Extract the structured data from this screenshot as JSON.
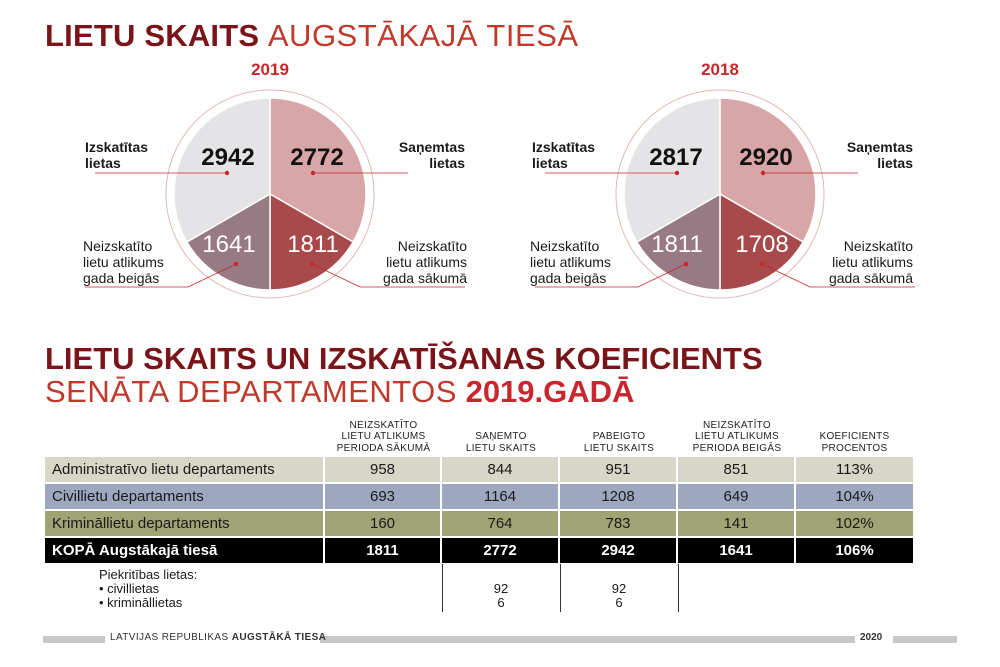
{
  "title1": {
    "bold": "LIETU SKAITS",
    "light": "AUGSTĀKAJĀ TIESĀ"
  },
  "pies": [
    {
      "year": "2019",
      "heard": "2942",
      "received": "2772",
      "pending_end": "1641",
      "pending_start": "1811",
      "label_heard": [
        "Izskatītas",
        "lietas"
      ],
      "label_received": [
        "Saņemtas",
        "lietas"
      ],
      "label_end": [
        "Neizskatīto",
        "lietu atlikums",
        "gada beigās"
      ],
      "label_start": [
        "Neizskatīto",
        "lietu atlikums",
        "gada sākumā"
      ]
    },
    {
      "year": "2018",
      "heard": "2817",
      "received": "2920",
      "pending_end": "1811",
      "pending_start": "1708",
      "label_heard": [
        "Izskatītas",
        "lietas"
      ],
      "label_received": [
        "Saņemtas",
        "lietas"
      ],
      "label_end": [
        "Neizskatīto",
        "lietu atlikums",
        "gada beigās"
      ],
      "label_start": [
        "Neizskatīto",
        "lietu atlikums",
        "gada sākumā"
      ]
    }
  ],
  "title2": "LIETU SKAITS UN IZSKATĪŠANAS KOEFICIENTS",
  "title3": {
    "light": "SENĀTA DEPARTAMENTOS",
    "bold": "2019.GADĀ"
  },
  "table": {
    "headers": [
      [
        "NEIZSKATĪTO",
        "LIETU ATLIKUMS",
        "PERIODA SĀKUMĀ"
      ],
      [
        "SAŅEMTO",
        "LIETU SKAITS"
      ],
      [
        "PABEIGTO",
        "LIETU SKAITS"
      ],
      [
        "NEIZSKATĪTO",
        "LIETU ATLIKUMS",
        "PERIODA BEIGĀS"
      ],
      [
        "KOEFICIENTS",
        "PROCENTOS"
      ]
    ],
    "rows": [
      {
        "name": "Administratīvo lietu departaments",
        "values": [
          "958",
          "844",
          "951",
          "851",
          "113%"
        ],
        "color": "#d8d6c7"
      },
      {
        "name": "Civillietu departaments",
        "values": [
          "693",
          "1164",
          "1208",
          "649",
          "104%"
        ],
        "color": "#9da7bf"
      },
      {
        "name": "Krimināllietu departaments",
        "values": [
          "160",
          "764",
          "783",
          "141",
          "102%"
        ],
        "color": "#a0a373"
      },
      {
        "name": "KOPĀ Augstākajā tiesā",
        "values": [
          "1811",
          "2772",
          "2942",
          "1641",
          "106%"
        ],
        "color": "#000000"
      }
    ],
    "extra": {
      "title": "Piekritības lietas:",
      "items": [
        "• civillietas",
        "• krimināllietas"
      ],
      "received": [
        "92",
        "6"
      ],
      "finished": [
        "92",
        "6"
      ]
    }
  },
  "footer": {
    "text": "LATVIJAS REPUBLIKAS",
    "bold": "AUGSTĀKĀ TIESA",
    "year": "2020"
  },
  "colors": {
    "heard": "#e4e4e6",
    "received": "#d8a6a6",
    "pending_end": "#987a85",
    "pending_start": "#a8494c",
    "ring": "#e2b8b8"
  }
}
